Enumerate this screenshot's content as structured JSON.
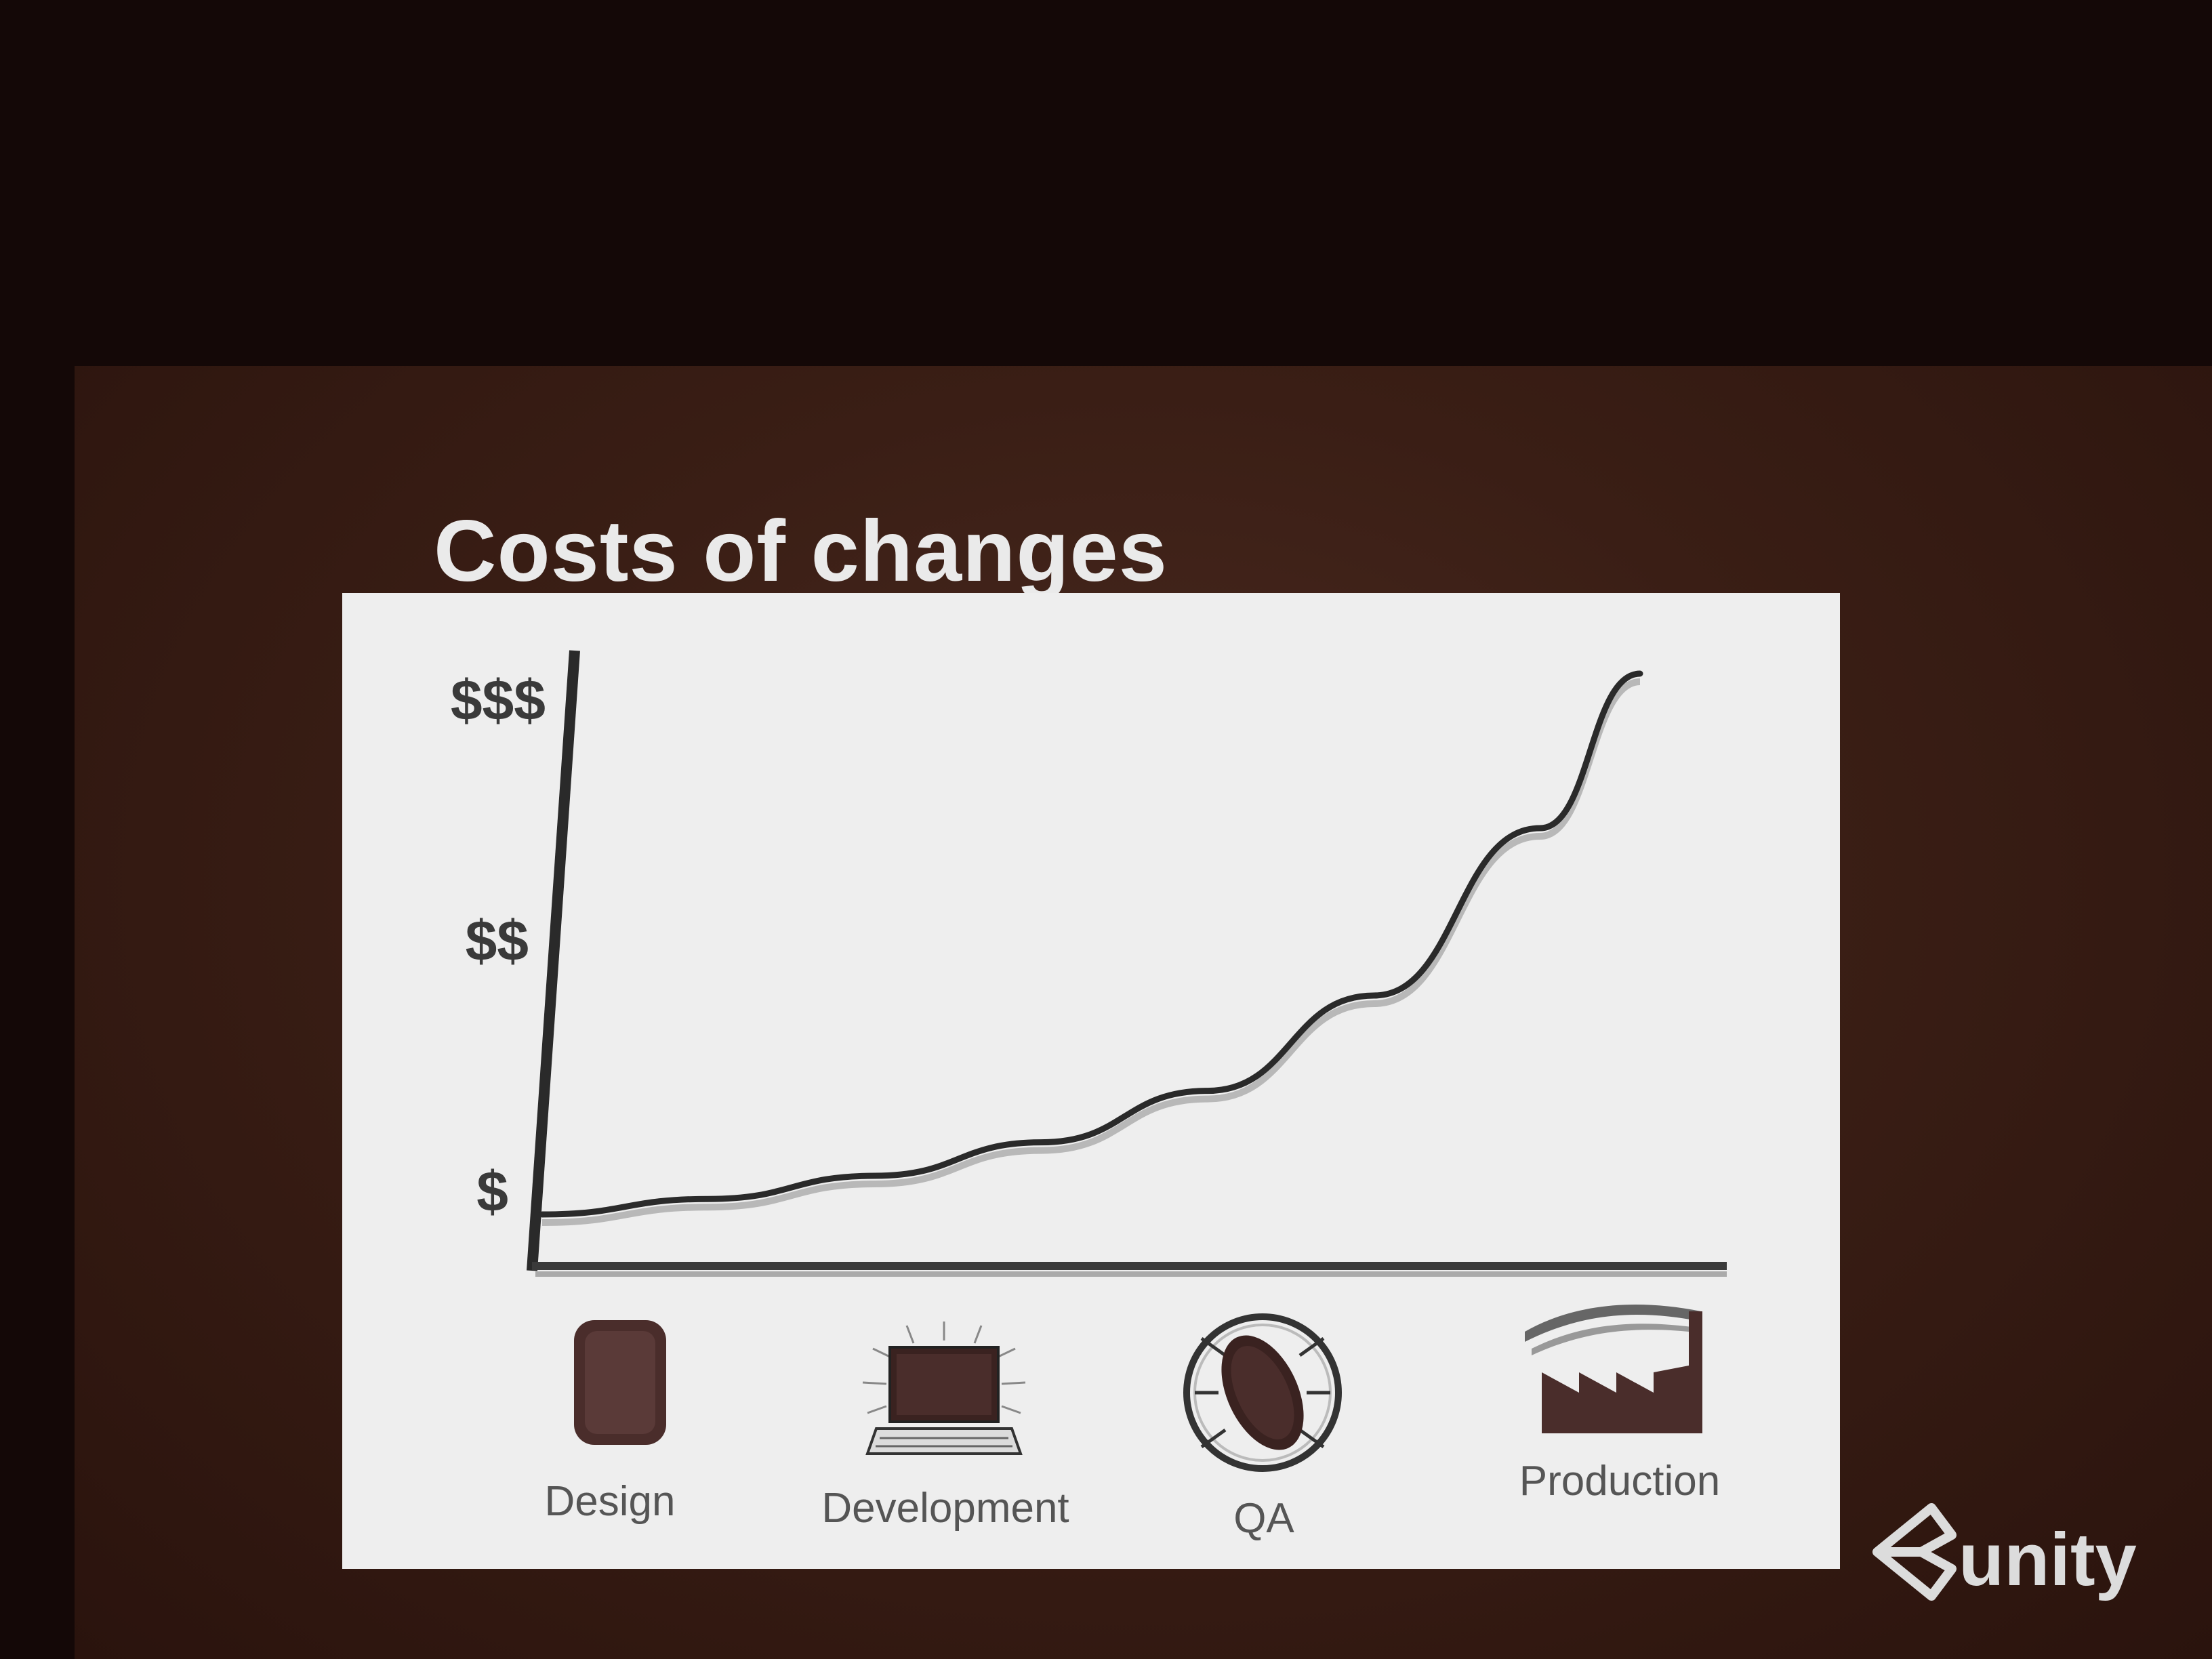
{
  "slide": {
    "brand": "unity"
  },
  "chart_data": {
    "type": "line",
    "title": "Costs of changes",
    "xlabel": "",
    "ylabel": "",
    "categories": [
      "Design",
      "Development",
      "QA",
      "Production"
    ],
    "y_tick_labels": [
      "$",
      "$$",
      "$$$"
    ],
    "series": [
      {
        "x": [
          0,
          0.5,
          1,
          1.5,
          2,
          2.5,
          3,
          3.3
        ],
        "y": [
          0.1,
          0.16,
          0.25,
          0.38,
          0.58,
          0.95,
          1.6,
          2.2
        ]
      }
    ],
    "ylim": [
      0,
      2.25
    ],
    "grid": false,
    "colors": {
      "curve": "#2a2a2a",
      "axis": "#2a2a2a",
      "icon": "#4a2d2b",
      "panel": "#eeeeee"
    },
    "icons": [
      "tablet-icon",
      "laptop-icon",
      "bug-icon",
      "factory-icon"
    ]
  }
}
